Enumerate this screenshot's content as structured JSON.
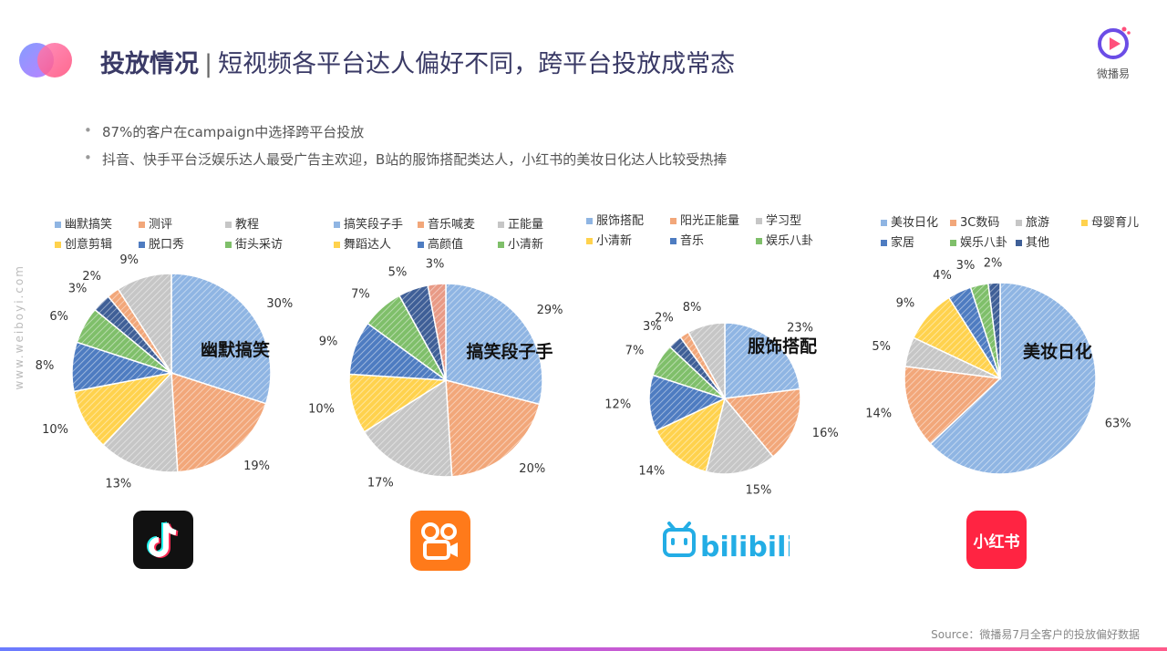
{
  "header": {
    "title_main": "投放情况",
    "title_sep": "|",
    "title_rest": "短视频各平台达人偏好不同，跨平台投放成常态",
    "brand_name": "微播易"
  },
  "bullets": [
    "87%的客户在campaign中选择跨平台投放",
    "抖音、快手平台泛娱乐达人最受广告主欢迎，B站的服饰搭配类达人，小红书的美妆日化达人比较受热捧"
  ],
  "side_text": "www.weiboyi.com",
  "platforms": {
    "douyin": "抖音",
    "kuaishou": "快手",
    "bilibili": "bilibili",
    "xiaohongshu": "小红书"
  },
  "colors": {
    "blue": "#8fb5e3",
    "orange": "#f2a77a",
    "gray": "#c6c6c6",
    "yellow": "#ffd24d",
    "navy": "#4e7cc1",
    "green": "#7fbf6a",
    "dblue": "#3f5f97",
    "salmon": "#e89a86"
  },
  "chart_data": [
    {
      "type": "pie",
      "title": "幽默搞笑",
      "categories": [
        "幽默搞笑",
        "测评",
        "教程",
        "创意剪辑",
        "脱口秀",
        "街头采访",
        "",
        "",
        ""
      ],
      "values": [
        30,
        19,
        13,
        10,
        8,
        6,
        3,
        2,
        9
      ],
      "labels": [
        "30%",
        "19%",
        "13%",
        "10%",
        "8%",
        "6%",
        "3%",
        "2%",
        "9%"
      ]
    },
    {
      "type": "pie",
      "title": "搞笑段子手",
      "categories": [
        "搞笑段子手",
        "音乐喊麦",
        "正能量",
        "舞蹈达人",
        "高颜值",
        "小清新",
        "",
        ""
      ],
      "values": [
        29,
        20,
        17,
        10,
        9,
        7,
        5,
        3
      ],
      "labels": [
        "29%",
        "20%",
        "17%",
        "10%",
        "9%",
        "7%",
        "5%",
        "3%"
      ]
    },
    {
      "type": "pie",
      "title": "服饰搭配",
      "categories": [
        "服饰搭配",
        "阳光正能量",
        "学习型",
        "小清新",
        "音乐",
        "娱乐八卦",
        "",
        "",
        ""
      ],
      "values": [
        23,
        16,
        15,
        14,
        12,
        7,
        3,
        2,
        8
      ],
      "labels": [
        "23%",
        "16%",
        "15%",
        "14%",
        "12%",
        "7%",
        "3%",
        "2%",
        "8%"
      ]
    },
    {
      "type": "pie",
      "title": "美妆日化",
      "categories": [
        "美妆日化",
        "3C数码",
        "旅游",
        "母婴育儿",
        "家居",
        "娱乐八卦",
        "其他"
      ],
      "values": [
        63,
        14,
        5,
        9,
        4,
        3,
        2
      ],
      "labels": [
        "63%",
        "14%",
        "5%",
        "9%",
        "4%",
        "3%",
        "2%"
      ]
    }
  ],
  "source": "Source：微播易7月全客户的投放偏好数据"
}
